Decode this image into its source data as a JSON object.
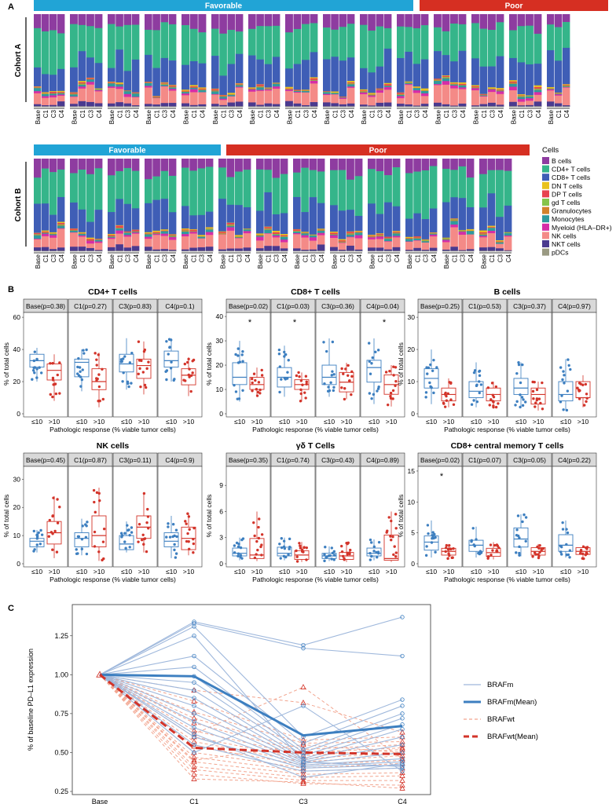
{
  "panels": {
    "a": "A",
    "b": "B",
    "c": "C"
  },
  "colors": {
    "favorable": "#21a4d6",
    "poor": "#d62f22",
    "cells": [
      "#8e3ca0",
      "#35b58a",
      "#3f5eb6",
      "#e8c21e",
      "#e8424f",
      "#86c44a",
      "#d3822c",
      "#2f9a9e",
      "#d62da7",
      "#f48a87",
      "#4a3a8f",
      "#9a9a83"
    ],
    "boxBlue": "#3d7fc0",
    "boxRed": "#d3342a",
    "braf_m": "#3d7fc0",
    "braf_m_thin": "#9fb8dc",
    "braf_wt": "#d3342a",
    "braf_wt_thin": "#f2a58f"
  },
  "panelA": {
    "cohort_label": "Cohort A",
    "groups": [
      {
        "label": "Favorable",
        "response": "favorable"
      },
      {
        "label": "Poor",
        "response": "poor"
      }
    ],
    "timepoint_sets": [
      [
        "Base",
        "C1",
        "C3",
        "C4"
      ],
      [
        "Base",
        "C1",
        "C3",
        "C4"
      ],
      [
        "Base",
        "C1",
        "C3",
        "C4"
      ],
      [
        "Base",
        "C1",
        "C3",
        "C4"
      ],
      [
        "Base",
        "C1",
        "C4"
      ],
      [
        "Base",
        "C1",
        "C3",
        "C4"
      ],
      [
        "Base",
        "C1",
        "C3",
        "C4"
      ],
      [
        "Base",
        "C1",
        "C3",
        "C4"
      ],
      [
        "Base",
        "C1",
        "C3",
        "C4"
      ],
      [
        "Base",
        "C1",
        "C3",
        "C4"
      ],
      [
        "Base",
        "C1",
        "C3",
        "C4"
      ],
      [
        "Base",
        "C1",
        "C3",
        "C4"
      ],
      [
        "Base",
        "C1",
        "C3",
        "C4"
      ],
      [
        "Base",
        "C1",
        "C3",
        "C4"
      ],
      [
        "Base",
        "C1",
        "C4"
      ]
    ]
  },
  "panelB_top": {
    "cohort_label": "Cohort B",
    "groups": [
      {
        "label": "Favorable",
        "response": "favorable"
      },
      {
        "label": "Poor",
        "response": "poor"
      }
    ],
    "timepoint_sets": [
      [
        "Base",
        "C1",
        "C3",
        "C4"
      ],
      [
        "Base",
        "C1",
        "C3",
        "C4"
      ],
      [
        "Base",
        "C1",
        "C3",
        "C4"
      ],
      [
        "Base",
        "C1",
        "C3",
        "C4"
      ],
      [
        "Base",
        "C1",
        "C3",
        "C4"
      ],
      [
        "Base",
        "C1",
        "C3",
        "C4"
      ],
      [
        "Base",
        "C1",
        "C3",
        "C4"
      ],
      [
        "Base",
        "C1",
        "C3",
        "C4"
      ],
      [
        "Base",
        "C1",
        "C3",
        "C4"
      ],
      [
        "Base",
        "C1",
        "C3",
        "C4"
      ],
      [
        "Base",
        "C1",
        "C3",
        "C4"
      ],
      [
        "Base",
        "C1",
        "C3",
        "C4"
      ],
      [
        "Base",
        "C1",
        "C3",
        "C4"
      ]
    ]
  },
  "legend": {
    "title": "Cells",
    "items": [
      "B cells",
      "CD4+ T cells",
      "CD8+ T cells",
      "DN T cells",
      "DP T cells",
      "gd T cells",
      "Granulocytes",
      "Monocytes",
      "Myeloid (HLA–DR+)",
      "NK cells",
      "NKT cells",
      "pDCs"
    ]
  },
  "chart_data": [
    {
      "type": "box",
      "title": "CD4+ T cells",
      "ylabel": "% of total cells",
      "xlabel": "Pathologic response (% viable tumor cells)",
      "groups": [
        "≤10",
        ">10"
      ],
      "ylim": [
        0,
        62
      ],
      "yticks": [
        0,
        20,
        40,
        60
      ],
      "facets": [
        {
          "label": "Base(p=0.38)",
          "sig": false,
          "boxes": [
            [
              20,
              29,
              33,
              37,
              41
            ],
            [
              8,
              21,
              27,
              31,
              37
            ]
          ]
        },
        {
          "label": "C1(p=0.27)",
          "sig": false,
          "boxes": [
            [
              14,
              23,
              32,
              34,
              40
            ],
            [
              4,
              15,
              20,
              28,
              38
            ]
          ]
        },
        {
          "label": "C3(p=0.83)",
          "sig": false,
          "boxes": [
            [
              15,
              26,
              31,
              37,
              47
            ],
            [
              12,
              22,
              30,
              34,
              45
            ]
          ]
        },
        {
          "label": "C4(p=0.1)",
          "sig": false,
          "boxes": [
            [
              20,
              29,
              33,
              39,
              47
            ],
            [
              11,
              18,
              24,
              28,
              35
            ]
          ]
        }
      ]
    },
    {
      "type": "box",
      "title": "CD8+ T cells",
      "ylabel": "% of total cells",
      "xlabel": "Pathologic response (% viable tumor cells)",
      "groups": [
        "≤10",
        ">10"
      ],
      "ylim": [
        0,
        41
      ],
      "yticks": [
        0,
        10,
        20,
        30,
        40
      ],
      "facets": [
        {
          "label": "Base(p=0.02)",
          "sig": true,
          "boxes": [
            [
              5,
              12,
              15,
              21,
              30
            ],
            [
              7,
              10,
              12,
              15,
              19
            ]
          ]
        },
        {
          "label": "C1(p=0.03)",
          "sig": true,
          "boxes": [
            [
              7,
              11,
              15,
              19,
              28
            ],
            [
              5,
              10,
              12,
              14,
              17
            ]
          ]
        },
        {
          "label": "C3(p=0.36)",
          "sig": false,
          "boxes": [
            [
              7,
              12,
              15,
              20,
              31
            ],
            [
              6,
              9,
              13,
              17,
              21
            ]
          ]
        },
        {
          "label": "C4(p=0.04)",
          "sig": true,
          "boxes": [
            [
              4,
              13,
              19,
              22,
              31
            ],
            [
              3,
              8,
              12,
              16,
              20
            ]
          ]
        }
      ]
    },
    {
      "type": "box",
      "title": "B cells",
      "ylabel": "% of total cells",
      "xlabel": "Pathologic response (% viable tumor cells)",
      "groups": [
        "≤10",
        ">10"
      ],
      "ylim": [
        0,
        31
      ],
      "yticks": [
        0,
        10,
        20,
        30
      ],
      "facets": [
        {
          "label": "Base(p=0.25)",
          "sig": false,
          "boxes": [
            [
              3,
              8,
              11,
              14,
              20
            ],
            [
              2,
              4,
              6,
              8,
              11
            ]
          ]
        },
        {
          "label": "C1(p=0.53)",
          "sig": false,
          "boxes": [
            [
              2,
              5,
              7,
              10,
              16
            ],
            [
              2,
              4,
              6,
              8,
              10
            ]
          ]
        },
        {
          "label": "C3(p=0.37)",
          "sig": false,
          "boxes": [
            [
              2,
              6,
              8,
              11,
              16
            ],
            [
              1,
              3,
              6,
              8,
              10
            ]
          ]
        },
        {
          "label": "C4(p=0.97)",
          "sig": false,
          "boxes": [
            [
              1,
              4,
              6,
              10,
              17
            ],
            [
              2,
              5,
              5,
              10,
              12
            ]
          ]
        }
      ]
    },
    {
      "type": "box",
      "title": "NK cells",
      "ylabel": "% of total cells",
      "xlabel": "Pathologic response (% viable tumor cells)",
      "groups": [
        "≤10",
        ">10"
      ],
      "ylim": [
        0,
        34
      ],
      "yticks": [
        0,
        10,
        20,
        30
      ],
      "facets": [
        {
          "label": "Base(p=0.45)",
          "sig": false,
          "boxes": [
            [
              4,
              6,
              8,
              9,
              12
            ],
            [
              2,
              7,
              11,
              15,
              24
            ]
          ]
        },
        {
          "label": "C1(p=0.87)",
          "sig": false,
          "boxes": [
            [
              3,
              6,
              9,
              11,
              16
            ],
            [
              1,
              6,
              10,
              17,
              27
            ]
          ]
        },
        {
          "label": "C3(p=0.11)",
          "sig": false,
          "boxes": [
            [
              4,
              5,
              7,
              10,
              15
            ],
            [
              4,
              9,
              13,
              17,
              25
            ]
          ]
        },
        {
          "label": "C4(p=0.9)",
          "sig": false,
          "boxes": [
            [
              2,
              6,
              8,
              11,
              17
            ],
            [
              3,
              5,
              9,
              13,
              18
            ]
          ]
        }
      ]
    },
    {
      "type": "box",
      "title": "γδ T Cells",
      "ylabel": "% of total cells",
      "xlabel": "Pathologic response (% viable tumor cells)",
      "groups": [
        "≤10",
        ">10"
      ],
      "ylim": [
        0,
        11
      ],
      "yticks": [
        0,
        3,
        6,
        9
      ],
      "facets": [
        {
          "label": "Base(p=0.35)",
          "sig": false,
          "boxes": [
            [
              0.4,
              0.9,
              1.2,
              1.8,
              3.0
            ],
            [
              0.3,
              0.6,
              1.0,
              2.9,
              6.0
            ]
          ]
        },
        {
          "label": "C1(p=0.74)",
          "sig": false,
          "boxes": [
            [
              0.4,
              0.9,
              1.2,
              1.9,
              3.0
            ],
            [
              0.2,
              0.5,
              1.0,
              1.5,
              2.5
            ]
          ]
        },
        {
          "label": "C3(p=0.43)",
          "sig": false,
          "boxes": [
            [
              0.3,
              0.6,
              0.9,
              1.2,
              2.0
            ],
            [
              0.2,
              0.5,
              0.9,
              1.3,
              2.5
            ]
          ]
        },
        {
          "label": "C4(p=0.89)",
          "sig": false,
          "boxes": [
            [
              0.4,
              0.9,
              1.2,
              1.8,
              2.8
            ],
            [
              0.2,
              0.4,
              0.6,
              3.3,
              6.0
            ]
          ]
        }
      ]
    },
    {
      "type": "box",
      "title": "CD8+ central memory T cells",
      "ylabel": "% of total cells",
      "xlabel": "Pathologic response (% viable tumor cells)",
      "groups": [
        "≤10",
        ">10"
      ],
      "ylim": [
        0,
        15.5
      ],
      "yticks": [
        0,
        5,
        10,
        15
      ],
      "facets": [
        {
          "label": "Base(p=0.02)",
          "sig": true,
          "boxes": [
            [
              1,
              2.2,
              3.5,
              4.5,
              7
            ],
            [
              0.8,
              1.4,
              2,
              2.5,
              3.2
            ]
          ]
        },
        {
          "label": "C1(p=0.07)",
          "sig": false,
          "boxes": [
            [
              1,
              2,
              3,
              3.8,
              6
            ],
            [
              0.7,
              1.2,
              1.8,
              2.5,
              3.5
            ]
          ]
        },
        {
          "label": "C3(p=0.05)",
          "sig": false,
          "boxes": [
            [
              1.2,
              2.7,
              4,
              5.8,
              8
            ],
            [
              0.8,
              1.4,
              2,
              2.6,
              3.2
            ]
          ]
        },
        {
          "label": "C4(p=0.22)",
          "sig": false,
          "boxes": [
            [
              1,
              2,
              3,
              4.7,
              7
            ],
            [
              0.8,
              1.5,
              2,
              2.6,
              3
            ]
          ]
        }
      ]
    },
    {
      "type": "line",
      "title": "",
      "ylabel": "% of baseline PD–L1 expression",
      "xlabel": "",
      "categories": [
        "Base",
        "C1",
        "C3",
        "C4"
      ],
      "ylim": [
        0.25,
        1.38
      ],
      "yticks": [
        0.25,
        0.5,
        0.75,
        1.0,
        1.25
      ],
      "ytick_labels": [
        "0.25",
        "0.50",
        "0.75",
        "1.00",
        "1.25"
      ],
      "legend": [
        "BRAFm",
        "BRAFm(Mean)",
        "BRAFwt",
        "BRAFwt(Mean)"
      ],
      "series": [
        {
          "name": "BRAFm(Mean)",
          "values": [
            1.0,
            0.99,
            0.61,
            0.67
          ]
        },
        {
          "name": "BRAFwt(Mean)",
          "values": [
            1.0,
            0.53,
            0.5,
            0.49
          ]
        }
      ],
      "braf_m_lines": [
        [
          1.0,
          1.34,
          1.19,
          1.37
        ],
        [
          1.0,
          1.33,
          1.17,
          1.12
        ],
        [
          1.0,
          1.31,
          0.6,
          0.84
        ],
        [
          1.0,
          1.12,
          0.56,
          0.8
        ],
        [
          1.0,
          1.05,
          0.52,
          0.75
        ],
        [
          1.0,
          0.99,
          0.5,
          0.72
        ],
        [
          1.0,
          0.95,
          0.48,
          0.68
        ],
        [
          1.0,
          0.9,
          0.46,
          0.65
        ],
        [
          1.0,
          0.85,
          0.45,
          0.6
        ],
        [
          1.0,
          0.8,
          0.44,
          0.55
        ],
        [
          1.0,
          0.75,
          0.43,
          0.5
        ],
        [
          1.0,
          0.7,
          0.42,
          0.46
        ],
        [
          1.0,
          0.66,
          0.41,
          0.44
        ],
        [
          1.0,
          0.6,
          0.4,
          0.42
        ],
        [
          1.0,
          0.55,
          0.38,
          0.4
        ],
        [
          1.0,
          0.5,
          0.8,
          0.38
        ],
        [
          1.0,
          1.25,
          0.44,
          0.41
        ],
        [
          1.0,
          0.62,
          0.34,
          0.43
        ]
      ],
      "braf_wt_lines": [
        [
          1.0,
          0.9,
          0.82,
          0.63
        ],
        [
          1.0,
          0.83,
          0.58,
          0.6
        ],
        [
          1.0,
          0.76,
          0.56,
          0.57
        ],
        [
          1.0,
          0.72,
          0.52,
          0.55
        ],
        [
          1.0,
          0.69,
          0.5,
          0.53
        ],
        [
          1.0,
          0.64,
          0.48,
          0.52
        ],
        [
          1.0,
          0.6,
          0.46,
          0.5
        ],
        [
          1.0,
          0.57,
          0.44,
          0.48
        ],
        [
          1.0,
          0.54,
          0.42,
          0.45
        ],
        [
          1.0,
          0.5,
          0.4,
          0.43
        ],
        [
          1.0,
          0.47,
          0.38,
          0.4
        ],
        [
          1.0,
          0.44,
          0.36,
          0.37
        ],
        [
          1.0,
          0.41,
          0.34,
          0.35
        ],
        [
          1.0,
          0.39,
          0.32,
          0.32
        ],
        [
          1.0,
          0.36,
          0.3,
          0.29
        ],
        [
          1.0,
          0.33,
          0.31,
          0.27
        ],
        [
          1.0,
          0.62,
          0.92,
          0.46
        ],
        [
          1.0,
          0.45,
          0.55,
          0.5
        ]
      ]
    }
  ]
}
